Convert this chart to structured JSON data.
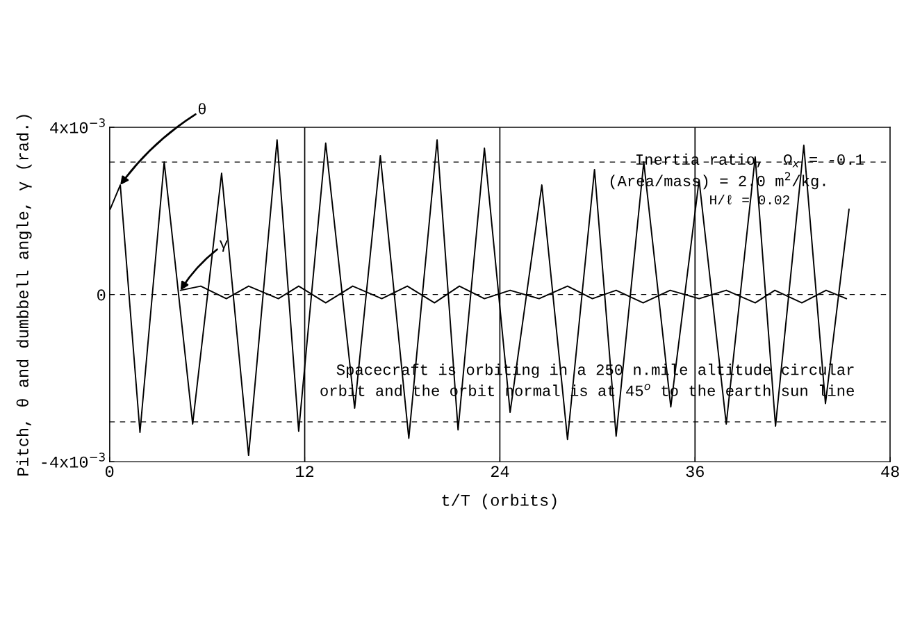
{
  "chart_data": {
    "type": "line",
    "xlabel": "t/T (orbits)",
    "ylabel": "Pitch, θ and dumbbell angle, γ (rad.)",
    "xlim": [
      0,
      48
    ],
    "xticks": [
      0,
      12,
      24,
      36,
      48
    ],
    "ylim": [
      -0.004,
      0.004
    ],
    "yticks": [
      {
        "value": -0.004,
        "label": "-4x10$^{−3}$"
      },
      0,
      {
        "value": 0.004,
        "label": "4x10$^{−3}$"
      }
    ],
    "grid": "x",
    "legend": false,
    "marker": "none",
    "line_style": "solid",
    "series": [
      {
        "color": "#000000",
        "x": [
          0.04,
          0.66,
          1.87,
          3.36,
          5.11,
          6.89,
          8.55,
          10.3,
          11.63,
          13.29,
          15.07,
          16.65,
          18.4,
          20.14,
          21.43,
          23.05,
          24.63,
          26.58,
          28.16,
          29.82,
          31.15,
          32.85,
          34.51,
          36.25,
          37.92,
          39.7,
          40.95,
          42.69,
          44.02,
          45.47
        ],
        "values": [
          0.00204,
          0.00262,
          -0.0033,
          0.00317,
          -0.0031,
          0.0029,
          -0.00385,
          0.0037,
          -0.00327,
          0.00362,
          -0.00272,
          0.00332,
          -0.00344,
          0.0037,
          -0.00324,
          0.0035,
          -0.00282,
          0.00262,
          -0.00347,
          0.00299,
          -0.00339,
          0.00317,
          -0.00269,
          0.00274,
          -0.0031,
          0.00329,
          -0.00315,
          0.00357,
          -0.00261,
          0.00204
        ]
      },
      {
        "color": "#000000",
        "x": [
          4.36,
          5.61,
          7.18,
          8.55,
          10.38,
          11.63,
          13.29,
          14.95,
          16.74,
          18.31,
          19.98,
          21.51,
          23.05,
          24.63,
          26.41,
          28.16,
          29.69,
          31.15,
          32.81,
          34.47,
          36.25,
          37.92,
          39.7,
          40.91,
          42.57,
          44.06,
          45.31
        ],
        "values": [
          0.0001,
          0.0002,
          -0.0001,
          0.0002,
          -0.0001,
          0.0002,
          -0.0002,
          0.0002,
          -0.0001,
          0.0002,
          -0.0002,
          0.0002,
          -0.0001,
          0.0001,
          -0.0001,
          0.0002,
          -0.0001,
          0.0001,
          -0.0002,
          0.0001,
          -0.0001,
          0.0001,
          -0.0002,
          0.0001,
          -0.0002,
          0.0001,
          -0.0001
        ]
      }
    ],
    "ref_lines": [
      {
        "axis": "y",
        "value": 0.00317,
        "color": "#000000",
        "line_style": "dashed"
      },
      {
        "axis": "y",
        "value": 0,
        "color": "#000000",
        "line_style": "dashed"
      },
      {
        "axis": "y",
        "value": -0.00305,
        "color": "#000000",
        "line_style": "dashed"
      }
    ],
    "annotations": [
      {
        "text": "θ",
        "x": 0.66,
        "y": 0.00262
      },
      {
        "text": "γ",
        "x": 4.36,
        "y": 0.0001
      },
      "Inertia ratio,  Ω$_{x}$ = -0.1",
      "(Area/mass) = 2.0 m$^{2}$/kg.",
      "H/ℓ = 0.02",
      "Spacecraft is orbiting in a 250 n.mile altitude circular\norbit and the orbit normal is at 45$^{o}$ to the earth sun line"
    ]
  }
}
